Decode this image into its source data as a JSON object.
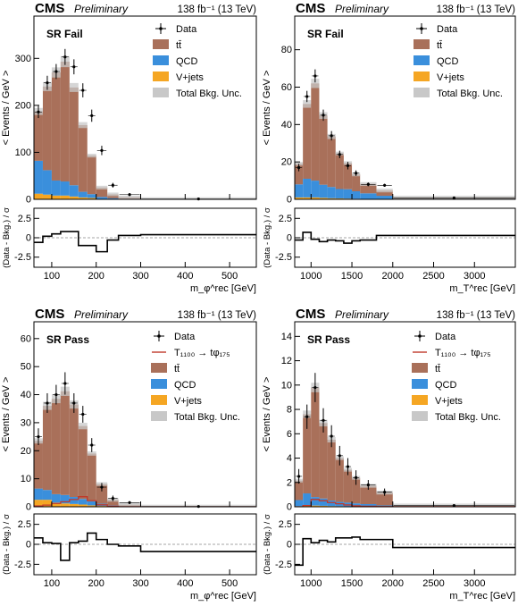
{
  "header": {
    "cms": "CMS",
    "preliminary": "Preliminary",
    "lumi": "138 fb⁻¹ (13 TeV)"
  },
  "labels": {
    "ylabel_top": "< Events / GeV >",
    "ylabel_bottom": "(Data - Bkg.) / σ",
    "xlabel_phi": "m_φ^rec [GeV]",
    "xlabel_T": "m_T^rec [GeV]"
  },
  "legend": {
    "data": "Data",
    "ttbar": "tt̄",
    "qcd": "QCD",
    "vjets": "V+jets",
    "unc": "Total Bkg. Unc.",
    "signal": "T₁₁₀₀ → tφ₁₇₅"
  },
  "colors": {
    "ttbar": "#a9705a",
    "qcd": "#3a8fdc",
    "vjets": "#f5a623",
    "unc": "#c8c8c8",
    "signal": "#c0392b",
    "data": "#000000"
  },
  "chart_data": [
    {
      "type": "bar",
      "region": "SR Fail",
      "xlabel": "m_φ^rec [GeV]",
      "ylabel": "< Events / GeV >",
      "xlim": [
        60,
        560
      ],
      "ylim": [
        0,
        390
      ],
      "yticks": [
        0,
        100,
        200,
        300
      ],
      "xticks": [
        100,
        200,
        300,
        400,
        500
      ],
      "edges": [
        60,
        80,
        100,
        120,
        140,
        160,
        180,
        200,
        225,
        250,
        300,
        560
      ],
      "ttbar": [
        105,
        178,
        230,
        255,
        208,
        142,
        82,
        20,
        8,
        3,
        0.2
      ],
      "qcd": [
        70,
        52,
        32,
        30,
        24,
        12,
        8,
        4,
        2,
        1,
        0.2
      ],
      "vjets": [
        12,
        10,
        8,
        8,
        6,
        4,
        3,
        1,
        0.5,
        0.2,
        0.05
      ],
      "data": [
        186,
        248,
        272,
        303,
        282,
        232,
        178,
        104,
        30,
        10,
        0.7
      ],
      "data_err": [
        13,
        15,
        16,
        17,
        16,
        15,
        13,
        10,
        5,
        3,
        0.5
      ],
      "pull_ylim": [
        -3.8,
        3.8
      ],
      "pull_yticks": [
        -2.5,
        0,
        2.5
      ],
      "pull": [
        -0.6,
        0.2,
        0.5,
        0.8,
        0.8,
        -1.0,
        -1.0,
        -1.8,
        -0.3,
        0.3,
        0.4
      ]
    },
    {
      "type": "bar",
      "region": "SR Fail",
      "xlabel": "m_T^rec [GeV]",
      "ylabel": "< Events / GeV >",
      "xlim": [
        800,
        3500
      ],
      "ylim": [
        0,
        98
      ],
      "yticks": [
        0,
        20,
        40,
        60,
        80
      ],
      "xticks": [
        1000,
        1500,
        2000,
        2500,
        3000
      ],
      "edges": [
        800,
        900,
        1000,
        1100,
        1200,
        1300,
        1400,
        1500,
        1600,
        1800,
        2000,
        3500
      ],
      "ttbar": [
        11,
        40,
        52,
        37,
        27,
        19,
        14,
        9,
        5,
        2.8,
        0.6
      ],
      "qcd": [
        7,
        10,
        9,
        7,
        6,
        5,
        5,
        4,
        3,
        1.8,
        0.3
      ],
      "vjets": [
        1,
        1,
        1,
        0.8,
        0.6,
        0.5,
        0.4,
        0.3,
        0.2,
        0.1,
        0.05
      ],
      "data": [
        17,
        55,
        66,
        45,
        34,
        24,
        18,
        14,
        8,
        7.5,
        0.7
      ],
      "data_err": [
        2,
        3,
        3.5,
        3,
        2.5,
        2,
        2,
        1.5,
        1,
        0.8,
        0.3
      ],
      "pull_ylim": [
        -3.8,
        3.8
      ],
      "pull_yticks": [
        -2.5,
        0,
        2.5
      ],
      "pull": [
        -0.3,
        0.7,
        -0.2,
        -0.5,
        -0.3,
        -0.4,
        -0.7,
        -0.4,
        -0.3,
        0.3,
        0.3
      ]
    },
    {
      "type": "bar",
      "region": "SR Pass",
      "xlabel": "m_φ^rec [GeV]",
      "ylabel": "< Events / GeV >",
      "xlim": [
        60,
        560
      ],
      "ylim": [
        0,
        66
      ],
      "yticks": [
        0,
        10,
        20,
        30,
        40,
        50,
        60
      ],
      "xticks": [
        100,
        200,
        300,
        400,
        500
      ],
      "edges": [
        60,
        80,
        100,
        120,
        140,
        160,
        180,
        200,
        225,
        250,
        300,
        560
      ],
      "ttbar": [
        17,
        30,
        34,
        37,
        33,
        26,
        17,
        7,
        2,
        0.5,
        0.05
      ],
      "qcd": [
        4,
        3.5,
        3,
        3,
        2.5,
        2,
        1.5,
        0.8,
        0.4,
        0.2,
        0.02
      ],
      "vjets": [
        2.5,
        2.5,
        1.5,
        1.2,
        1,
        0.8,
        0.5,
        0.3,
        0.1,
        0.05,
        0.01
      ],
      "data": [
        25,
        37,
        40,
        44,
        37,
        33,
        22,
        7,
        3,
        1.5,
        0.1
      ],
      "data_err": [
        3,
        3.5,
        3.5,
        4,
        3.5,
        3,
        2.5,
        1.5,
        1,
        0.5,
        0.1
      ],
      "signal": [
        0.3,
        0.6,
        1.2,
        1.8,
        2.6,
        3.6,
        2.2,
        0.7,
        0.2,
        0.05,
        0
      ],
      "pull_ylim": [
        -3.8,
        3.8
      ],
      "pull_yticks": [
        -2.5,
        0,
        2.5
      ],
      "pull": [
        0.8,
        0.2,
        0.1,
        -2.0,
        0.2,
        0.4,
        1.4,
        0.6,
        0.0,
        -0.2,
        -0.9
      ]
    },
    {
      "type": "bar",
      "region": "SR Pass",
      "xlabel": "m_T^rec [GeV]",
      "ylabel": "< Events / GeV >",
      "xlim": [
        800,
        3500
      ],
      "ylim": [
        0,
        15.2
      ],
      "yticks": [
        0,
        2,
        4,
        6,
        8,
        10,
        12,
        14
      ],
      "xticks": [
        1000,
        1500,
        2000,
        2500,
        3000
      ],
      "edges": [
        800,
        900,
        1000,
        1100,
        1200,
        1300,
        1400,
        1500,
        1600,
        1800,
        2000,
        3500
      ],
      "ttbar": [
        1.6,
        6.5,
        9,
        6.2,
        5,
        3.6,
        2.7,
        2.1,
        1.5,
        1.05,
        0.09
      ],
      "qcd": [
        0.5,
        1,
        0.7,
        0.6,
        0.45,
        0.35,
        0.3,
        0.25,
        0.2,
        0.1,
        0.02
      ],
      "vjets": [
        0.05,
        0.1,
        0.1,
        0.08,
        0.06,
        0.05,
        0.04,
        0.03,
        0.02,
        0.01,
        0
      ],
      "data": [
        2.5,
        7.4,
        9.8,
        7.1,
        5.8,
        4.2,
        3.3,
        2.4,
        1.8,
        1.2,
        0.1
      ],
      "data_err": [
        0.6,
        1,
        1.2,
        1,
        0.9,
        0.8,
        0.7,
        0.6,
        0.4,
        0.3,
        0.05
      ],
      "signal": [
        0,
        0.1,
        0.6,
        0.5,
        0.35,
        0.25,
        0.15,
        0.08,
        0.04,
        0.02,
        0.005
      ],
      "pull_ylim": [
        -3.8,
        3.8
      ],
      "pull_yticks": [
        -2.5,
        0,
        2.5
      ],
      "pull": [
        -2.6,
        0.7,
        0.2,
        0.5,
        0.3,
        0.8,
        0.8,
        0.9,
        0.6,
        0.6,
        -0.4
      ]
    }
  ]
}
